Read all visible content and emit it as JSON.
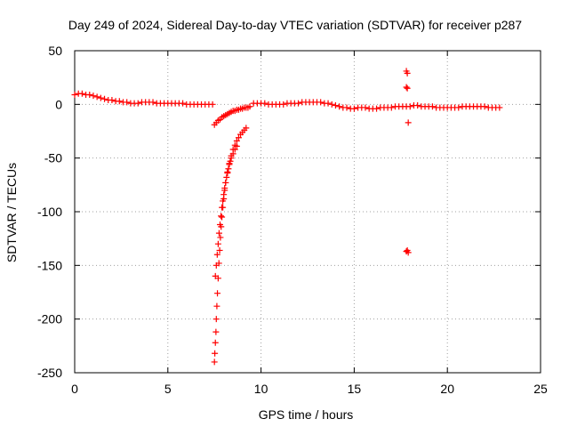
{
  "chart_data": {
    "type": "scatter",
    "title": "Day 249 of 2024, Sidereal Day-to-day VTEC variation (SDTVAR) for receiver p287",
    "xlabel": "GPS time / hours",
    "ylabel": "SDTVAR / TECUs",
    "xlim": [
      0,
      25
    ],
    "ylim": [
      -250,
      50
    ],
    "xticks": [
      0,
      5,
      10,
      15,
      20,
      25
    ],
    "yticks": [
      -250,
      -200,
      -150,
      -100,
      -50,
      0,
      50
    ],
    "grid": true,
    "legend": "none",
    "marker": "+",
    "color": "#ff0000",
    "series": [
      {
        "name": "baseline",
        "points": [
          [
            0.0,
            9
          ],
          [
            0.2,
            10
          ],
          [
            0.4,
            10
          ],
          [
            0.6,
            9
          ],
          [
            0.8,
            9
          ],
          [
            1.0,
            8
          ],
          [
            1.2,
            7
          ],
          [
            1.4,
            6
          ],
          [
            1.6,
            5
          ],
          [
            1.8,
            4
          ],
          [
            2.0,
            4
          ],
          [
            2.2,
            3
          ],
          [
            2.4,
            3
          ],
          [
            2.6,
            2
          ],
          [
            2.8,
            2
          ],
          [
            3.0,
            1
          ],
          [
            3.2,
            1
          ],
          [
            3.4,
            1
          ],
          [
            3.6,
            2
          ],
          [
            3.8,
            2
          ],
          [
            4.0,
            2
          ],
          [
            4.2,
            2
          ],
          [
            4.4,
            1
          ],
          [
            4.6,
            1
          ],
          [
            4.8,
            1
          ],
          [
            5.0,
            1
          ],
          [
            5.2,
            1
          ],
          [
            5.4,
            1
          ],
          [
            5.6,
            1
          ],
          [
            5.8,
            1
          ],
          [
            6.0,
            0
          ],
          [
            6.2,
            0
          ],
          [
            6.4,
            0
          ],
          [
            6.6,
            0
          ],
          [
            6.8,
            0
          ],
          [
            7.0,
            0
          ],
          [
            7.2,
            0
          ],
          [
            7.4,
            0
          ],
          [
            9.6,
            1
          ],
          [
            9.8,
            1
          ],
          [
            10.0,
            1
          ],
          [
            10.2,
            1
          ],
          [
            10.4,
            0
          ],
          [
            10.6,
            0
          ],
          [
            10.8,
            0
          ],
          [
            11.0,
            0
          ],
          [
            11.2,
            0
          ],
          [
            11.4,
            1
          ],
          [
            11.6,
            1
          ],
          [
            11.8,
            1
          ],
          [
            12.0,
            1
          ],
          [
            12.2,
            2
          ],
          [
            12.4,
            2
          ],
          [
            12.6,
            2
          ],
          [
            12.8,
            2
          ],
          [
            13.0,
            2
          ],
          [
            13.2,
            2
          ],
          [
            13.4,
            1
          ],
          [
            13.6,
            1
          ],
          [
            13.8,
            0
          ],
          [
            14.0,
            -1
          ],
          [
            14.2,
            -2
          ],
          [
            14.4,
            -3
          ],
          [
            14.6,
            -3
          ],
          [
            14.8,
            -4
          ],
          [
            15.0,
            -4
          ],
          [
            15.2,
            -3
          ],
          [
            15.4,
            -3
          ],
          [
            15.6,
            -3
          ],
          [
            15.8,
            -4
          ],
          [
            16.0,
            -4
          ],
          [
            16.2,
            -4
          ],
          [
            16.4,
            -3
          ],
          [
            16.6,
            -3
          ],
          [
            16.8,
            -3
          ],
          [
            17.0,
            -3
          ],
          [
            17.2,
            -2
          ],
          [
            17.4,
            -2
          ],
          [
            17.6,
            -2
          ],
          [
            17.8,
            -2
          ],
          [
            18.0,
            -2
          ],
          [
            18.2,
            -1
          ],
          [
            18.4,
            -1
          ],
          [
            18.6,
            -2
          ],
          [
            18.8,
            -2
          ],
          [
            19.0,
            -2
          ],
          [
            19.2,
            -2
          ],
          [
            19.4,
            -3
          ],
          [
            19.6,
            -3
          ],
          [
            19.8,
            -3
          ],
          [
            20.0,
            -3
          ],
          [
            20.2,
            -3
          ],
          [
            20.4,
            -3
          ],
          [
            20.6,
            -3
          ],
          [
            20.8,
            -2
          ],
          [
            21.0,
            -2
          ],
          [
            21.2,
            -2
          ],
          [
            21.4,
            -2
          ],
          [
            21.6,
            -2
          ],
          [
            21.8,
            -2
          ],
          [
            22.0,
            -2
          ],
          [
            22.2,
            -3
          ],
          [
            22.4,
            -3
          ],
          [
            22.6,
            -3
          ],
          [
            22.8,
            -3
          ]
        ]
      },
      {
        "name": "upper-branch",
        "points": [
          [
            7.5,
            -19
          ],
          [
            7.6,
            -17
          ],
          [
            7.7,
            -15
          ],
          [
            7.8,
            -14
          ],
          [
            7.9,
            -12
          ],
          [
            8.0,
            -11
          ],
          [
            8.1,
            -10
          ],
          [
            8.2,
            -9
          ],
          [
            8.3,
            -8
          ],
          [
            8.4,
            -7
          ],
          [
            8.5,
            -6
          ],
          [
            8.6,
            -6
          ],
          [
            8.7,
            -5
          ],
          [
            8.8,
            -5
          ],
          [
            8.9,
            -4
          ],
          [
            9.0,
            -4
          ],
          [
            9.1,
            -3
          ],
          [
            9.2,
            -3
          ],
          [
            9.3,
            -3
          ],
          [
            9.4,
            -2
          ]
        ]
      },
      {
        "name": "lower-branch",
        "points": [
          [
            7.5,
            -240
          ],
          [
            7.52,
            -232
          ],
          [
            7.55,
            -222
          ],
          [
            7.58,
            -212
          ],
          [
            7.6,
            -200
          ],
          [
            7.63,
            -188
          ],
          [
            7.66,
            -176
          ],
          [
            7.7,
            -162
          ],
          [
            7.74,
            -148
          ],
          [
            7.78,
            -136
          ],
          [
            7.82,
            -124
          ],
          [
            7.86,
            -114
          ],
          [
            7.9,
            -105
          ],
          [
            7.95,
            -96
          ],
          [
            8.0,
            -88
          ],
          [
            8.05,
            -80
          ],
          [
            8.1,
            -73
          ],
          [
            8.2,
            -63
          ],
          [
            8.3,
            -55
          ],
          [
            8.4,
            -48
          ],
          [
            8.5,
            -42
          ],
          [
            8.6,
            -38
          ],
          [
            8.7,
            -34
          ],
          [
            8.8,
            -31
          ],
          [
            8.9,
            -28
          ],
          [
            9.0,
            -26
          ],
          [
            9.1,
            -24
          ],
          [
            9.2,
            -22
          ]
        ]
      },
      {
        "name": "band-lower-left",
        "points": [
          [
            7.55,
            -160
          ],
          [
            7.6,
            -150
          ],
          [
            7.65,
            -140
          ],
          [
            7.7,
            -130
          ],
          [
            7.75,
            -120
          ],
          [
            7.8,
            -112
          ],
          [
            7.85,
            -104
          ],
          [
            7.9,
            -96
          ],
          [
            7.95,
            -90
          ],
          [
            8.0,
            -84
          ],
          [
            8.05,
            -78
          ],
          [
            8.1,
            -73
          ],
          [
            8.15,
            -68
          ],
          [
            8.2,
            -64
          ],
          [
            8.25,
            -60
          ],
          [
            8.3,
            -56
          ],
          [
            8.35,
            -53
          ],
          [
            8.4,
            -50
          ],
          [
            8.5,
            -46
          ],
          [
            8.6,
            -42
          ],
          [
            8.7,
            -39
          ]
        ]
      },
      {
        "name": "outliers",
        "points": [
          [
            17.8,
            31
          ],
          [
            17.85,
            29
          ],
          [
            17.8,
            16
          ],
          [
            17.85,
            15
          ],
          [
            17.9,
            -17
          ],
          [
            17.8,
            -137
          ],
          [
            17.85,
            -136
          ],
          [
            17.9,
            -138
          ]
        ]
      }
    ]
  }
}
